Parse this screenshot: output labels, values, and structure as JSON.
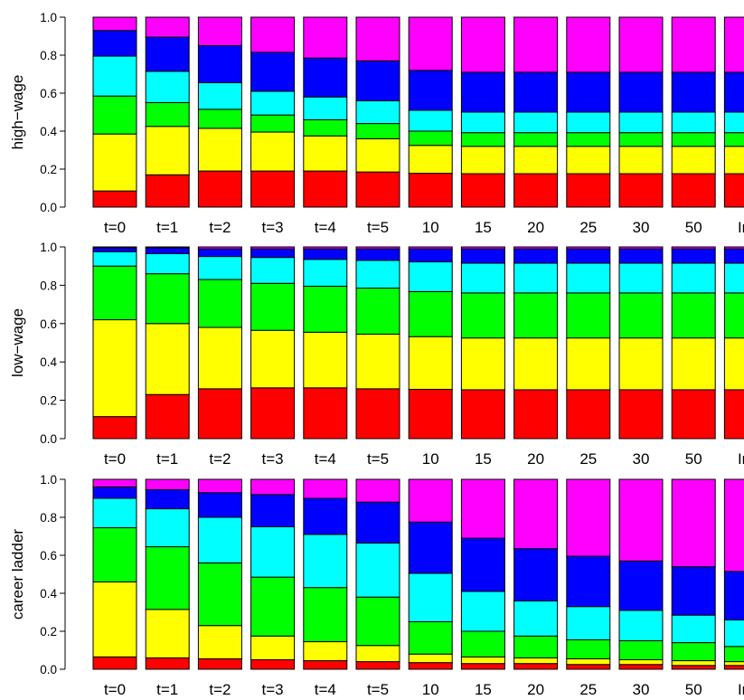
{
  "chart_data": [
    {
      "type": "bar",
      "stacked": true,
      "ylabel": "high−wage",
      "ylim": [
        0,
        1
      ],
      "yticks": [
        "0.0",
        "0.2",
        "0.4",
        "0.6",
        "0.8",
        "1.0"
      ],
      "categories": [
        "t=0",
        "t=1",
        "t=2",
        "t=3",
        "t=4",
        "t=5",
        "10",
        "15",
        "20",
        "25",
        "30",
        "50",
        "Inf"
      ],
      "segment_colors": [
        "#ff0000",
        "#ffff00",
        "#00ff00",
        "#00ffff",
        "#0000ff",
        "#ff00ff"
      ],
      "series": [
        {
          "color": "#ff0000",
          "values": [
            0.085,
            0.17,
            0.19,
            0.19,
            0.19,
            0.185,
            0.178,
            0.176,
            0.176,
            0.176,
            0.176,
            0.176,
            0.176
          ]
        },
        {
          "color": "#ffff00",
          "values": [
            0.3,
            0.255,
            0.225,
            0.205,
            0.185,
            0.175,
            0.147,
            0.144,
            0.144,
            0.144,
            0.144,
            0.144,
            0.144
          ]
        },
        {
          "color": "#00ff00",
          "values": [
            0.2,
            0.125,
            0.1,
            0.09,
            0.085,
            0.08,
            0.075,
            0.072,
            0.072,
            0.072,
            0.072,
            0.072,
            0.072
          ]
        },
        {
          "color": "#00ffff",
          "values": [
            0.21,
            0.165,
            0.14,
            0.125,
            0.12,
            0.12,
            0.11,
            0.108,
            0.108,
            0.108,
            0.108,
            0.108,
            0.108
          ]
        },
        {
          "color": "#0000ff",
          "values": [
            0.135,
            0.18,
            0.195,
            0.205,
            0.205,
            0.21,
            0.21,
            0.21,
            0.21,
            0.21,
            0.21,
            0.21,
            0.21
          ]
        },
        {
          "color": "#ff00ff",
          "values": [
            0.07,
            0.105,
            0.15,
            0.185,
            0.215,
            0.23,
            0.28,
            0.29,
            0.29,
            0.29,
            0.29,
            0.29,
            0.29
          ]
        }
      ]
    },
    {
      "type": "bar",
      "stacked": true,
      "ylabel": "low−wage",
      "ylim": [
        0,
        1
      ],
      "yticks": [
        "0.0",
        "0.2",
        "0.4",
        "0.6",
        "0.8",
        "1.0"
      ],
      "categories": [
        "t=0",
        "t=1",
        "t=2",
        "t=3",
        "t=4",
        "t=5",
        "10",
        "15",
        "20",
        "25",
        "30",
        "50",
        "Inf"
      ],
      "segment_colors": [
        "#ff0000",
        "#ffff00",
        "#00ff00",
        "#00ffff",
        "#0000ff",
        "#ff00ff"
      ],
      "series": [
        {
          "color": "#ff0000",
          "values": [
            0.115,
            0.23,
            0.26,
            0.265,
            0.265,
            0.26,
            0.257,
            0.255,
            0.255,
            0.255,
            0.255,
            0.255,
            0.255
          ]
        },
        {
          "color": "#ffff00",
          "values": [
            0.505,
            0.37,
            0.32,
            0.3,
            0.29,
            0.285,
            0.275,
            0.27,
            0.27,
            0.27,
            0.27,
            0.27,
            0.27
          ]
        },
        {
          "color": "#00ff00",
          "values": [
            0.28,
            0.26,
            0.25,
            0.245,
            0.24,
            0.24,
            0.235,
            0.235,
            0.235,
            0.235,
            0.235,
            0.235,
            0.235
          ]
        },
        {
          "color": "#00ffff",
          "values": [
            0.075,
            0.105,
            0.12,
            0.135,
            0.14,
            0.145,
            0.155,
            0.155,
            0.155,
            0.155,
            0.155,
            0.155,
            0.155
          ]
        },
        {
          "color": "#0000ff",
          "values": [
            0.02,
            0.03,
            0.04,
            0.045,
            0.055,
            0.06,
            0.068,
            0.075,
            0.075,
            0.075,
            0.075,
            0.075,
            0.075
          ]
        },
        {
          "color": "#ff00ff",
          "values": [
            0.005,
            0.005,
            0.01,
            0.01,
            0.01,
            0.01,
            0.01,
            0.01,
            0.01,
            0.01,
            0.01,
            0.01,
            0.01
          ]
        }
      ]
    },
    {
      "type": "bar",
      "stacked": true,
      "ylabel": "career ladder",
      "ylim": [
        0,
        1
      ],
      "yticks": [
        "0.0",
        "0.2",
        "0.4",
        "0.6",
        "0.8",
        "1.0"
      ],
      "categories": [
        "t=0",
        "t=1",
        "t=2",
        "t=3",
        "t=4",
        "t=5",
        "10",
        "15",
        "20",
        "25",
        "30",
        "50",
        "Inf"
      ],
      "segment_colors": [
        "#ff0000",
        "#ffff00",
        "#00ff00",
        "#00ffff",
        "#0000ff",
        "#ff00ff"
      ],
      "series": [
        {
          "color": "#ff0000",
          "values": [
            0.065,
            0.06,
            0.055,
            0.05,
            0.045,
            0.04,
            0.035,
            0.03,
            0.03,
            0.025,
            0.025,
            0.02,
            0.02
          ]
        },
        {
          "color": "#ffff00",
          "values": [
            0.395,
            0.255,
            0.175,
            0.125,
            0.1,
            0.085,
            0.045,
            0.035,
            0.03,
            0.03,
            0.025,
            0.025,
            0.02
          ]
        },
        {
          "color": "#00ff00",
          "values": [
            0.285,
            0.33,
            0.33,
            0.31,
            0.285,
            0.255,
            0.17,
            0.135,
            0.115,
            0.1,
            0.1,
            0.095,
            0.08
          ]
        },
        {
          "color": "#00ffff",
          "values": [
            0.155,
            0.2,
            0.24,
            0.265,
            0.28,
            0.285,
            0.255,
            0.21,
            0.185,
            0.175,
            0.16,
            0.145,
            0.14
          ]
        },
        {
          "color": "#0000ff",
          "values": [
            0.06,
            0.1,
            0.13,
            0.17,
            0.19,
            0.215,
            0.27,
            0.28,
            0.275,
            0.265,
            0.26,
            0.255,
            0.255
          ]
        },
        {
          "color": "#ff00ff",
          "values": [
            0.04,
            0.055,
            0.07,
            0.08,
            0.1,
            0.12,
            0.225,
            0.31,
            0.365,
            0.405,
            0.43,
            0.46,
            0.485
          ]
        }
      ]
    }
  ]
}
